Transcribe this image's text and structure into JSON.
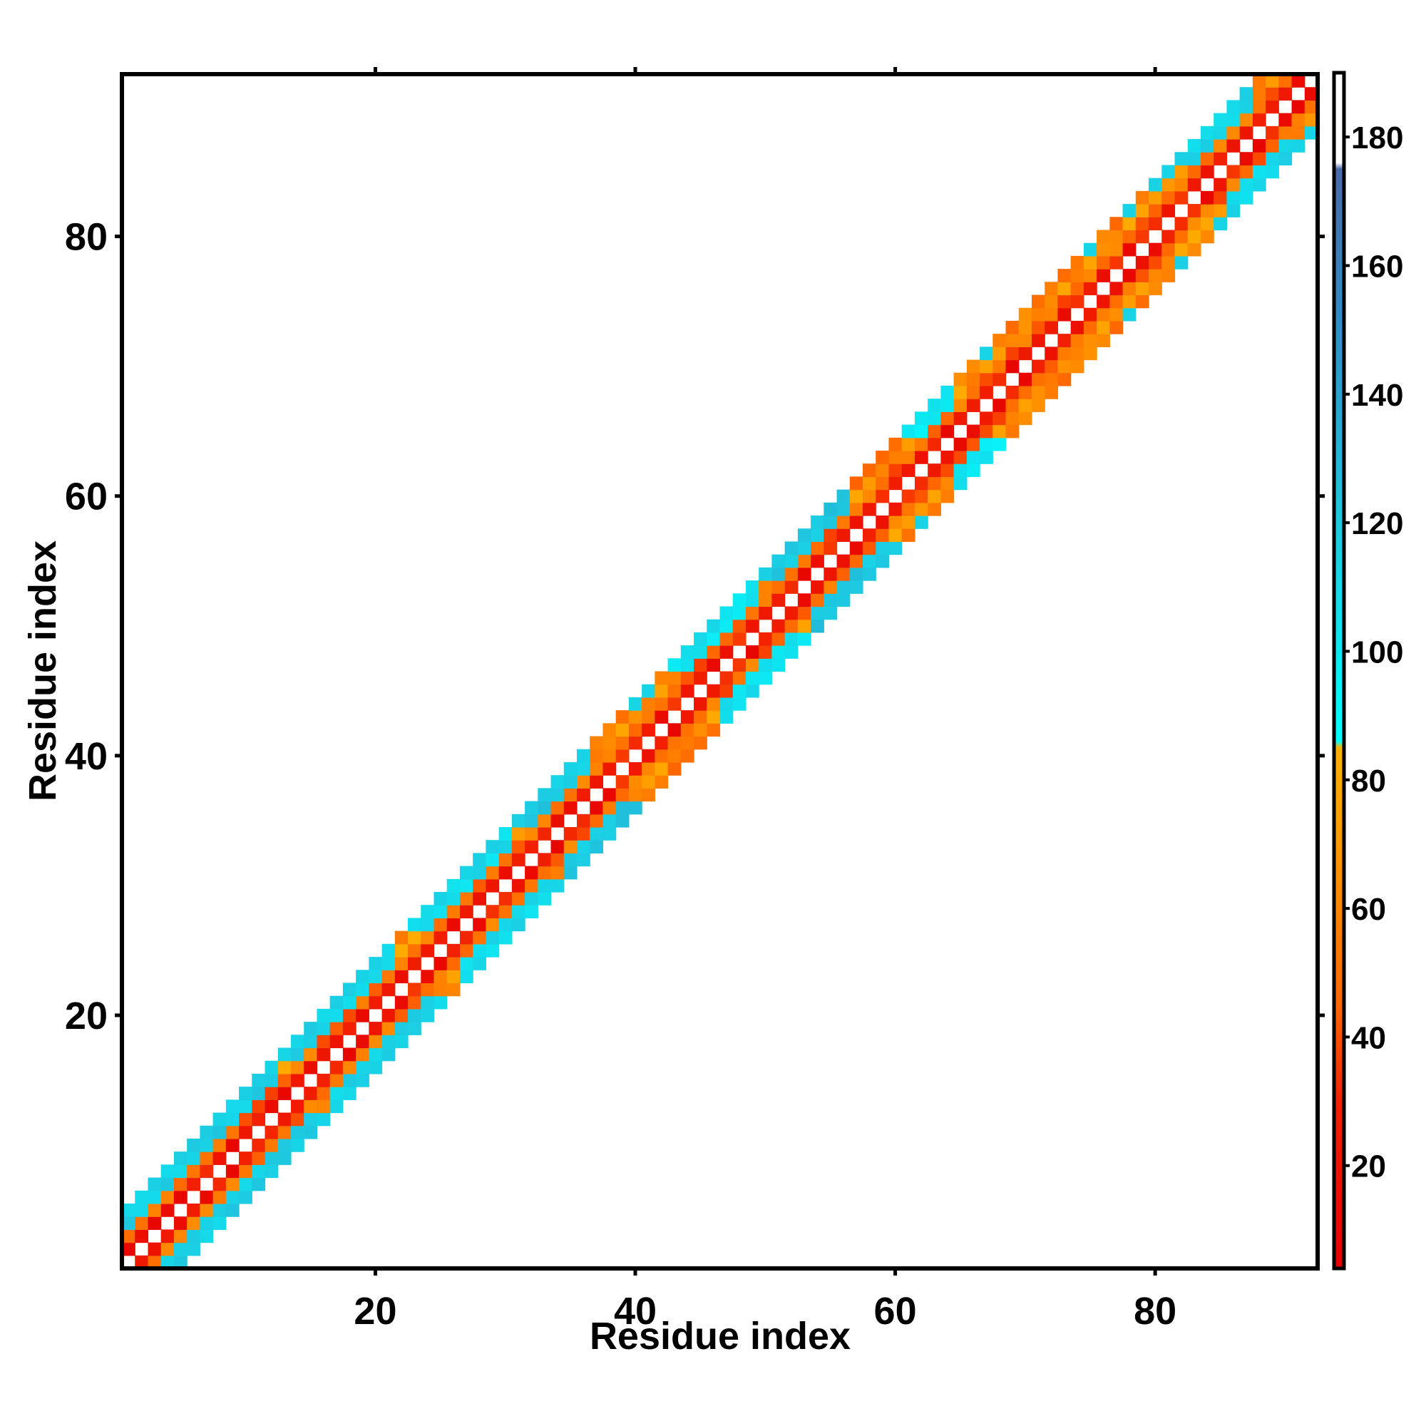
{
  "chart_data": {
    "type": "heatmap",
    "title": "",
    "xlabel": "Residue index",
    "ylabel": "Residue index",
    "xlim": [
      0.5,
      92.5
    ],
    "ylim": [
      0.5,
      92.5
    ],
    "x_ticks": [
      20,
      40,
      60,
      80
    ],
    "y_ticks": [
      20,
      40,
      60,
      80
    ],
    "grid": false,
    "band_half_width": 4,
    "empty_diagonal": true,
    "colorbar": {
      "range": [
        4,
        190
      ],
      "ticks": [
        20,
        40,
        60,
        80,
        100,
        120,
        140,
        160,
        180
      ],
      "stops": [
        {
          "value": 4,
          "color": "#e60000"
        },
        {
          "value": 30,
          "color": "#f22000"
        },
        {
          "value": 45,
          "color": "#ff6600"
        },
        {
          "value": 70,
          "color": "#ff9900"
        },
        {
          "value": 85,
          "color": "#ffb000"
        },
        {
          "value": 86,
          "color": "#00ffff"
        },
        {
          "value": 120,
          "color": "#1ec8e0"
        },
        {
          "value": 150,
          "color": "#2f8fc8"
        },
        {
          "value": 175,
          "color": "#4a6aa8"
        },
        {
          "value": 176,
          "color": "#ffffff"
        },
        {
          "value": 190,
          "color": "#ffffff"
        }
      ]
    },
    "offset_values": {
      "1": 22,
      "2": 50,
      "3": 68
    },
    "cyan_regions": [
      {
        "from": 1,
        "to": 14,
        "value": 115
      },
      {
        "from": 15,
        "to": 23,
        "value": 112
      },
      {
        "from": 25,
        "to": 32,
        "value": 108
      },
      {
        "from": 33,
        "to": 38,
        "value": 118
      },
      {
        "from": 45,
        "to": 51,
        "value": 104
      },
      {
        "from": 52,
        "to": 58,
        "value": 120
      },
      {
        "from": 63,
        "to": 66,
        "value": 100
      },
      {
        "from": 84,
        "to": 89,
        "value": 110
      }
    ]
  }
}
